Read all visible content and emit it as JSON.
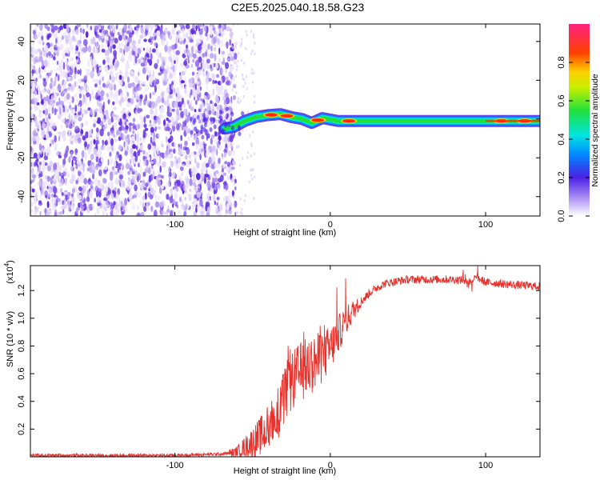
{
  "figure_title": "C2E5.2025.040.18.58.G23",
  "chart_data": [
    {
      "type": "heatmap",
      "xlabel": "Height of straight line (km)",
      "ylabel": "Frequency (Hz)",
      "xlim": [
        -193,
        135
      ],
      "ylim": [
        -50,
        49
      ],
      "x_ticks": [
        -100,
        0,
        100
      ],
      "y_ticks": [
        -40,
        -20,
        0,
        20,
        40
      ],
      "colorbar": {
        "label": "Normalized spectral amplitude",
        "range": [
          0,
          1
        ],
        "ticks": [
          0.0,
          0.2,
          0.4,
          0.6,
          0.8
        ]
      },
      "noise_region_x": [
        -193,
        -64
      ],
      "signal_track": [
        {
          "x": -68,
          "f": -5
        },
        {
          "x": -62,
          "f": -4
        },
        {
          "x": -55,
          "f": -1
        },
        {
          "x": -48,
          "f": 1
        },
        {
          "x": -40,
          "f": 2
        },
        {
          "x": -32,
          "f": 2.5
        },
        {
          "x": -25,
          "f": 1
        },
        {
          "x": -18,
          "f": 0
        },
        {
          "x": -12,
          "f": -2
        },
        {
          "x": -5,
          "f": 0.5
        },
        {
          "x": 5,
          "f": -1
        },
        {
          "x": 30,
          "f": -1
        },
        {
          "x": 60,
          "f": -1
        },
        {
          "x": 90,
          "f": -1
        },
        {
          "x": 120,
          "f": -1
        },
        {
          "x": 135,
          "f": -1
        }
      ],
      "peaks_x": [
        -38,
        -28,
        -8,
        12,
        110,
        125
      ]
    },
    {
      "type": "line",
      "xlabel": "Height of straight line (km)",
      "ylabel": "SNR (10 * v/v)",
      "y_multiplier": "(x10",
      "y_multiplier_exp": "4",
      "y_multiplier_close": ")",
      "xlim": [
        -193,
        135
      ],
      "ylim": [
        0,
        1.38
      ],
      "x_ticks": [
        -100,
        0,
        100
      ],
      "y_ticks": [
        0.2,
        0.4,
        0.6,
        0.8,
        1.0,
        1.2
      ],
      "color": "#e8302a",
      "series": [
        {
          "x": [
            -193,
            -150,
            -100,
            -70,
            -62,
            -55,
            -48,
            -42,
            -38,
            -32,
            -28,
            -22,
            -16,
            -10,
            -5,
            0,
            5,
            10,
            15,
            20,
            25,
            30,
            35,
            40,
            45,
            50,
            60,
            70,
            80,
            90,
            95,
            100,
            110,
            120,
            135
          ],
          "values": [
            0.01,
            0.01,
            0.01,
            0.02,
            0.03,
            0.07,
            0.12,
            0.18,
            0.25,
            0.35,
            0.48,
            0.58,
            0.64,
            0.68,
            0.72,
            0.78,
            0.88,
            0.98,
            1.06,
            1.12,
            1.18,
            1.22,
            1.25,
            1.26,
            1.27,
            1.28,
            1.28,
            1.28,
            1.28,
            1.27,
            1.29,
            1.26,
            1.25,
            1.24,
            1.23
          ]
        }
      ]
    }
  ]
}
